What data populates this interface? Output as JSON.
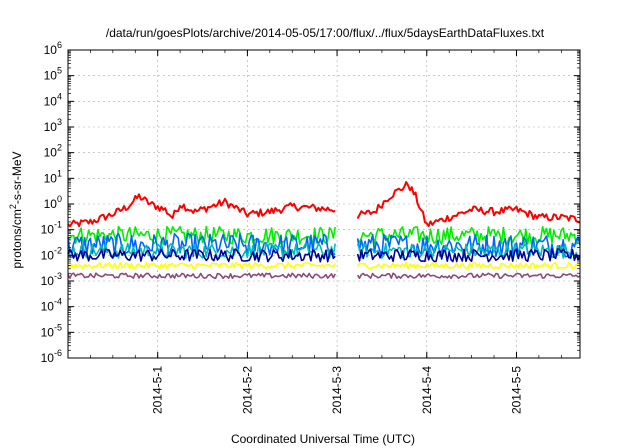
{
  "chart_data": {
    "type": "line",
    "title": "/data/run/goesPlots/archive/2014-05-05/17:00/flux/../flux/5daysEarthDataFluxes.txt",
    "xlabel": "Coordinated Universal Time (UTC)",
    "ylabel": {
      "base": "protons/cm",
      "sup": "2",
      "rest": "-s-sr-MeV"
    },
    "yscale": "log",
    "ylim": [
      1e-06,
      1000000.0
    ],
    "yticks": [
      {
        "exp": "-6"
      },
      {
        "exp": "-5"
      },
      {
        "exp": "-4"
      },
      {
        "exp": "-3"
      },
      {
        "exp": "-2"
      },
      {
        "exp": "-1"
      },
      {
        "exp": "0"
      },
      {
        "exp": "1"
      },
      {
        "exp": "2"
      },
      {
        "exp": "3"
      },
      {
        "exp": "4"
      },
      {
        "exp": "5"
      },
      {
        "exp": "6"
      }
    ],
    "ytick_base": "10",
    "xlim": [
      "2014-04-30T00:00",
      "2014-05-05T17:00"
    ],
    "xticks": [
      "2014-5-1",
      "2014-5-2",
      "2014-5-3",
      "2014-5-4",
      "2014-5-5"
    ],
    "grid": true,
    "data_gap": [
      "2014-05-02T23:30",
      "2014-05-03T05:30"
    ],
    "series": [
      {
        "color": "#ff0000",
        "noise": 0.15,
        "values": [
          [
            "2014-04-30T00:00",
            0.15
          ],
          [
            "2014-04-30T06:00",
            0.2
          ],
          [
            "2014-04-30T12:00",
            0.4
          ],
          [
            "2014-04-30T16:00",
            0.8
          ],
          [
            "2014-04-30T19:00",
            2.0
          ],
          [
            "2014-04-30T22:00",
            1.0
          ],
          [
            "2014-05-01T02:00",
            0.6
          ],
          [
            "2014-05-01T04:00",
            0.3
          ],
          [
            "2014-05-01T06:00",
            1.0
          ],
          [
            "2014-05-01T10:00",
            0.5
          ],
          [
            "2014-05-01T18:00",
            1.2
          ],
          [
            "2014-05-02T00:00",
            0.4
          ],
          [
            "2014-05-02T06:00",
            0.5
          ],
          [
            "2014-05-02T12:00",
            0.8
          ],
          [
            "2014-05-02T18:00",
            0.7
          ],
          [
            "2014-05-02T23:30",
            0.6
          ],
          [
            "2014-05-03T05:30",
            0.35
          ],
          [
            "2014-05-03T10:00",
            0.5
          ],
          [
            "2014-05-03T14:00",
            2.0
          ],
          [
            "2014-05-03T19:00",
            6.0
          ],
          [
            "2014-05-03T21:00",
            2.0
          ],
          [
            "2014-05-04T00:00",
            0.15
          ],
          [
            "2014-05-04T06:00",
            0.3
          ],
          [
            "2014-05-04T12:00",
            0.6
          ],
          [
            "2014-05-04T18:00",
            0.5
          ],
          [
            "2014-05-05T00:00",
            0.6
          ],
          [
            "2014-05-05T06:00",
            0.3
          ],
          [
            "2014-05-05T12:00",
            0.3
          ],
          [
            "2014-05-05T17:00",
            0.25
          ]
        ]
      },
      {
        "color": "#00ee00",
        "noise": 0.35,
        "values": [
          [
            "2014-04-30T00:00",
            0.06
          ],
          [
            "2014-05-02T23:30",
            0.06
          ],
          [
            "2014-05-03T05:30",
            0.06
          ],
          [
            "2014-05-05T17:00",
            0.06
          ]
        ]
      },
      {
        "color": "#0066ff",
        "noise": 0.45,
        "values": [
          [
            "2014-04-30T00:00",
            0.025
          ],
          [
            "2014-05-02T23:30",
            0.025
          ],
          [
            "2014-05-03T05:30",
            0.025
          ],
          [
            "2014-05-05T17:00",
            0.025
          ]
        ]
      },
      {
        "color": "#00bbbb",
        "noise": 0.3,
        "values": [
          [
            "2014-04-30T00:00",
            0.015
          ],
          [
            "2014-05-02T23:30",
            0.015
          ],
          [
            "2014-05-03T05:30",
            0.015
          ],
          [
            "2014-05-05T17:00",
            0.015
          ]
        ]
      },
      {
        "color": "#000099",
        "noise": 0.25,
        "values": [
          [
            "2014-04-30T00:00",
            0.01
          ],
          [
            "2014-05-02T23:30",
            0.01
          ],
          [
            "2014-05-03T05:30",
            0.01
          ],
          [
            "2014-05-05T17:00",
            0.01
          ]
        ]
      },
      {
        "color": "#ffff00",
        "noise": 0.12,
        "values": [
          [
            "2014-04-30T00:00",
            0.004
          ],
          [
            "2014-05-02T23:30",
            0.004
          ],
          [
            "2014-05-03T05:30",
            0.004
          ],
          [
            "2014-05-05T17:00",
            0.004
          ]
        ]
      },
      {
        "color": "#8b4a7a",
        "noise": 0.1,
        "values": [
          [
            "2014-04-30T00:00",
            0.0016
          ],
          [
            "2014-05-02T23:30",
            0.0016
          ],
          [
            "2014-05-03T05:30",
            0.0016
          ],
          [
            "2014-05-05T17:00",
            0.0016
          ]
        ]
      }
    ]
  }
}
